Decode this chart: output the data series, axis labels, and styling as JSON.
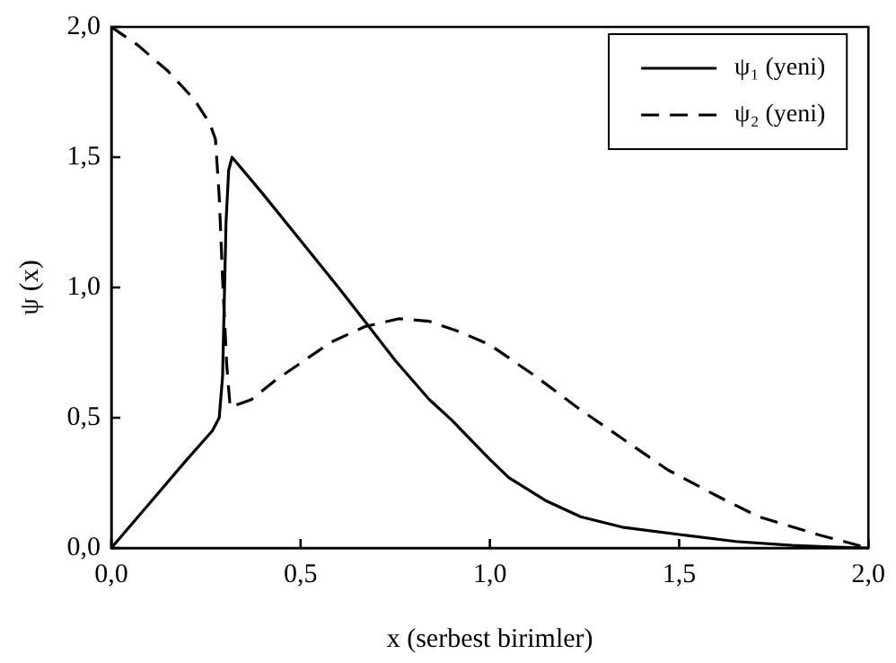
{
  "chart_data": {
    "type": "line",
    "xlabel": "x (serbest birimler)",
    "ylabel": "ψ (x)",
    "xlim": [
      0,
      2
    ],
    "ylim": [
      0,
      2
    ],
    "xticks": [
      {
        "value": 0,
        "label": "0,0"
      },
      {
        "value": 0.5,
        "label": "0,5"
      },
      {
        "value": 1,
        "label": "1,0"
      },
      {
        "value": 1.5,
        "label": "1,5"
      },
      {
        "value": 2,
        "label": "2,0"
      }
    ],
    "yticks": [
      {
        "value": 0,
        "label": "0,0"
      },
      {
        "value": 0.5,
        "label": "0,5"
      },
      {
        "value": 1,
        "label": "1,0"
      },
      {
        "value": 1.5,
        "label": "1,5"
      },
      {
        "value": 2,
        "label": "2,0"
      }
    ],
    "grid": false,
    "legend": "top right",
    "marker": "none",
    "series": [
      {
        "name": "ψ₁ (yeni)",
        "color": "#000000",
        "line_style": "solid",
        "x": [
          0,
          0.1,
          0.2,
          0.267,
          0.285,
          0.294,
          0.303,
          0.31,
          0.319,
          0.4,
          0.5,
          0.6,
          0.67,
          0.75,
          0.84,
          0.9,
          1.0,
          1.05,
          1.15,
          1.24,
          1.35,
          1.51,
          1.65,
          1.8,
          1.9,
          2.0
        ],
        "values": [
          0,
          0.17,
          0.34,
          0.45,
          0.5,
          0.66,
          1.25,
          1.45,
          1.5,
          1.36,
          1.18,
          1.0,
          0.87,
          0.72,
          0.57,
          0.49,
          0.34,
          0.27,
          0.18,
          0.12,
          0.08,
          0.05,
          0.025,
          0.01,
          0.004,
          0
        ]
      },
      {
        "name": "ψ₂ (yeni)",
        "color": "#000000",
        "line_style": "dashed",
        "x": [
          0,
          0.07,
          0.15,
          0.22,
          0.26,
          0.275,
          0.285,
          0.294,
          0.305,
          0.314,
          0.37,
          0.43,
          0.5,
          0.58,
          0.67,
          0.76,
          0.84,
          0.92,
          1.0,
          1.12,
          1.24,
          1.35,
          1.47,
          1.6,
          1.71,
          1.87,
          2.0
        ],
        "values": [
          2.0,
          1.93,
          1.83,
          1.72,
          1.63,
          1.57,
          1.35,
          1.03,
          0.7,
          0.54,
          0.57,
          0.64,
          0.71,
          0.79,
          0.85,
          0.88,
          0.87,
          0.83,
          0.78,
          0.66,
          0.53,
          0.42,
          0.3,
          0.2,
          0.12,
          0.05,
          0
        ]
      }
    ]
  }
}
